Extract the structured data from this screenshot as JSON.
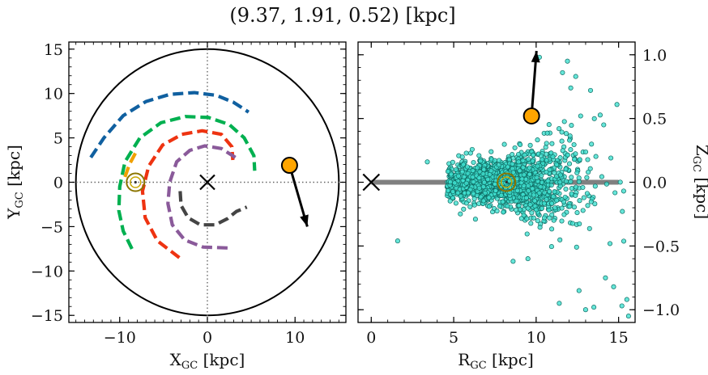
{
  "title": "(9.37, 1.91, 0.52) [kpc]",
  "colors": {
    "frame": "#000000",
    "star_fill": "#40e0d0",
    "star_edge": "#0f6b62",
    "highlight_fill": "#ffa500",
    "galactic_plane": "#808080",
    "center_marker": "#000000",
    "sun_outer": "#8b7500",
    "sun_inner": "#c7a600"
  },
  "chart_data": [
    {
      "id": "face_on",
      "type": "scatter",
      "xlabel": "X_GC [kpc]",
      "ylabel": "Y_GC [kpc]",
      "xlim": [
        -15.8,
        15.8
      ],
      "ylim": [
        -15.8,
        15.8
      ],
      "xticks": [
        -10,
        0,
        10
      ],
      "xtick_labels": [
        "−10",
        "0",
        "10"
      ],
      "yticks": [
        15,
        10,
        5,
        0,
        -5,
        -10,
        -15
      ],
      "ytick_labels": [
        "15",
        "10",
        "5",
        "0",
        "−5",
        "−10",
        "−15"
      ],
      "grid": false,
      "reference_lines": {
        "x": 0,
        "y": 0,
        "style": "dotted"
      },
      "disk_radius": 15,
      "galactic_center": [
        0,
        0
      ],
      "sun": [
        -8.2,
        0
      ],
      "highlight_point": [
        9.37,
        1.91
      ],
      "velocity_arrow": {
        "from": [
          9.37,
          1.91
        ],
        "to": [
          11.4,
          -5.0
        ]
      },
      "arms": [
        {
          "color": "#1060a0",
          "points": [
            [
              -13.3,
              2.8
            ],
            [
              -11.8,
              5.0
            ],
            [
              -9.6,
              7.5
            ],
            [
              -7.0,
              9.1
            ],
            [
              -4.3,
              9.9
            ],
            [
              -1.5,
              10.1
            ],
            [
              1.0,
              9.8
            ],
            [
              3.0,
              9.0
            ],
            [
              4.7,
              7.9
            ]
          ]
        },
        {
          "color": "#00b050",
          "points": [
            [
              -8.6,
              -7.5
            ],
            [
              -9.6,
              -5.5
            ],
            [
              -10.1,
              -3.2
            ],
            [
              -10.0,
              -0.5
            ],
            [
              -9.4,
              2.3
            ],
            [
              -7.7,
              5.0
            ],
            [
              -5.3,
              6.7
            ],
            [
              -2.5,
              7.4
            ],
            [
              0.1,
              7.3
            ],
            [
              2.5,
              6.5
            ],
            [
              4.2,
              5.0
            ],
            [
              5.3,
              3.0
            ],
            [
              5.4,
              1.3
            ]
          ]
        },
        {
          "color": "#f0a000",
          "points": [
            [
              -9.4,
              0.6
            ],
            [
              -8.9,
              2.0
            ],
            [
              -8.2,
              3.3
            ]
          ]
        },
        {
          "color": "#ee3311",
          "points": [
            [
              -3.2,
              -8.5
            ],
            [
              -5.7,
              -6.6
            ],
            [
              -7.1,
              -4.0
            ],
            [
              -7.4,
              -1.0
            ],
            [
              -6.7,
              1.8
            ],
            [
              -5.1,
              4.2
            ],
            [
              -2.9,
              5.4
            ],
            [
              -0.6,
              5.8
            ],
            [
              1.6,
              5.4
            ],
            [
              2.8,
              4.0
            ],
            [
              2.9,
              2.5
            ]
          ]
        },
        {
          "color": "#8a5a9a",
          "points": [
            [
              2.3,
              -7.4
            ],
            [
              -0.5,
              -7.3
            ],
            [
              -2.6,
              -6.5
            ],
            [
              -4.0,
              -4.8
            ],
            [
              -4.5,
              -2.4
            ],
            [
              -4.3,
              0.0
            ],
            [
              -3.5,
              2.3
            ],
            [
              -2.0,
              3.6
            ],
            [
              -0.3,
              4.1
            ],
            [
              1.6,
              3.8
            ],
            [
              3.2,
              2.8
            ]
          ]
        },
        {
          "color": "#444444",
          "points": [
            [
              -3.1,
              -1.0
            ],
            [
              -3.0,
              -2.6
            ],
            [
              -2.2,
              -4.0
            ],
            [
              -0.8,
              -4.8
            ],
            [
              0.9,
              -4.8
            ],
            [
              2.3,
              -4.1
            ],
            [
              3.3,
              -3.3
            ],
            [
              4.5,
              -2.8
            ]
          ]
        }
      ]
    },
    {
      "id": "edge_on",
      "type": "scatter",
      "xlabel": "R_GC [kpc]",
      "ylabel": "Z_GC [kpc]",
      "xlim": [
        -0.8,
        16.0
      ],
      "ylim": [
        -1.1,
        1.1
      ],
      "xticks": [
        0,
        5,
        10,
        15
      ],
      "xtick_labels": [
        "0",
        "5",
        "10",
        "15"
      ],
      "yticks": [
        1.0,
        0.5,
        0.0,
        -0.5,
        -1.0
      ],
      "ytick_labels": [
        "1.0",
        "0.5",
        "0.0",
        "−0.5",
        "−1.0"
      ],
      "grid": false,
      "plane_line": {
        "x": [
          0,
          15
        ],
        "y": 0
      },
      "galactic_center": [
        0,
        0
      ],
      "sun": [
        8.2,
        0
      ],
      "highlight_point": [
        9.72,
        0.52
      ],
      "velocity_arrow": {
        "from": [
          9.72,
          0.52
        ],
        "to": [
          10.02,
          1.03
        ]
      },
      "star_distribution": {
        "count": 1600,
        "r_center": 8.3,
        "r_spread": 2.4,
        "z_spread": 0.085,
        "seed": 7
      },
      "outliers": [
        [
          1.6,
          -0.46
        ],
        [
          3.4,
          0.16
        ],
        [
          10.2,
          0.98
        ],
        [
          11.9,
          0.95
        ],
        [
          12.4,
          0.83
        ],
        [
          14.9,
          0.61
        ],
        [
          13.3,
          0.72
        ],
        [
          14.2,
          -0.75
        ],
        [
          14.7,
          -0.82
        ],
        [
          13.0,
          -1.0
        ],
        [
          15.2,
          -0.97
        ],
        [
          15.5,
          -0.92
        ],
        [
          11.4,
          -0.95
        ],
        [
          12.6,
          -0.85
        ],
        [
          8.6,
          -0.62
        ],
        [
          9.5,
          -0.6
        ],
        [
          14.1,
          0.45
        ],
        [
          12.7,
          0.52
        ],
        [
          12.1,
          0.74
        ],
        [
          11.6,
          0.86
        ],
        [
          15.6,
          -1.05
        ],
        [
          13.5,
          -0.98
        ]
      ]
    }
  ]
}
